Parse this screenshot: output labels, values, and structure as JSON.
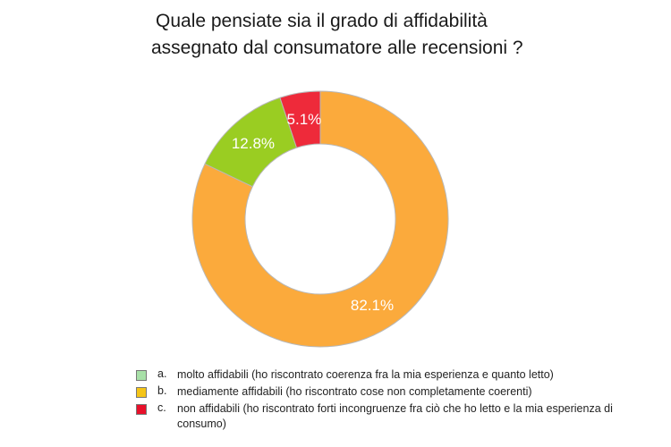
{
  "title": {
    "line1": "Quale pensiate sia il grado di affidabilità",
    "line2": "assegnato dal consumatore alle recensioni ?"
  },
  "chart_data": {
    "type": "pie",
    "variant": "donut",
    "title": "Quale pensiate sia il grado di affidabilità assegnato dal consumatore alle recensioni ?",
    "categories": [
      "molto affidabili",
      "mediamente affidabili",
      "non affidabili"
    ],
    "values": [
      12.8,
      82.1,
      5.1
    ],
    "labels": [
      "12.8%",
      "82.1%",
      "5.1%"
    ],
    "colors": [
      "#9ACD22",
      "#FBAA3C",
      "#EE2A3A"
    ],
    "legend_placement": "bottom"
  },
  "legend": {
    "items": [
      {
        "key": "a.",
        "text": "molto affidabili (ho riscontrato coerenza fra la mia esperienza e quanto letto)",
        "color": "#A8E0A8"
      },
      {
        "key": "b.",
        "text": "mediamente affidabili (ho riscontrato cose non completamente coerenti)",
        "color": "#F5C518"
      },
      {
        "key": "c.",
        "text": "non affidabili (ho riscontrato forti incongruenze fra ciò che ho letto e la mia esperienza di consumo)",
        "color": "#E8102A"
      }
    ]
  }
}
